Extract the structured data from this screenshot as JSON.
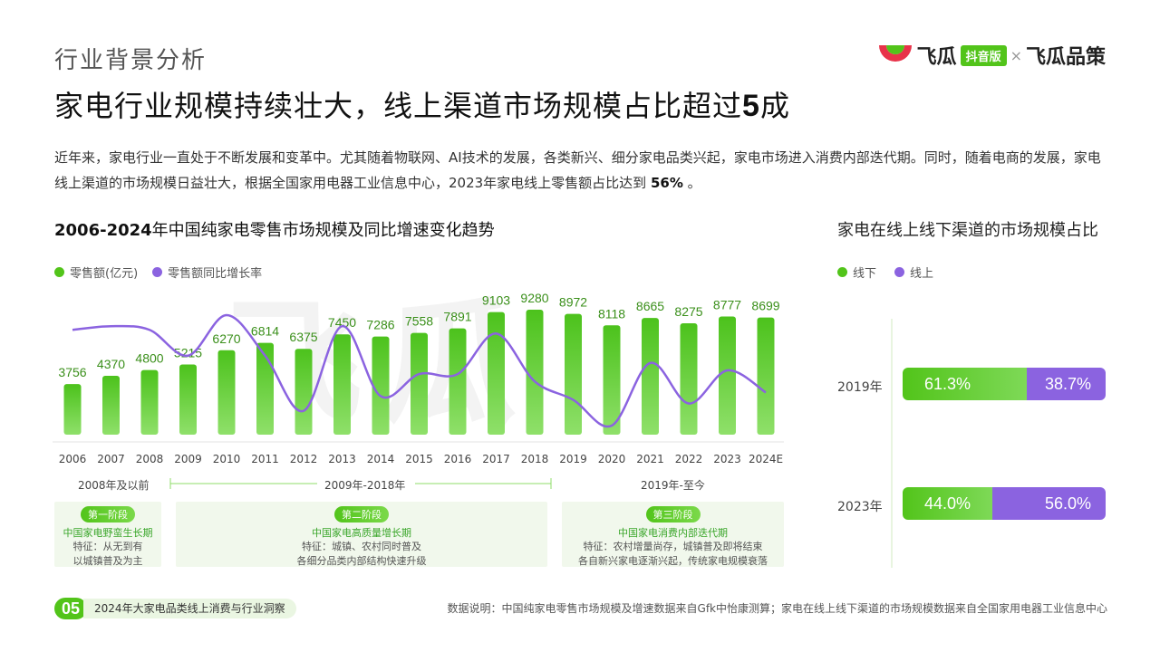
{
  "header": {
    "section": "行业背景分析",
    "headline_prefix": "家电行业规模持续壮大，线上渠道市场规模占比超过",
    "headline_num": "5",
    "headline_suffix": "成",
    "logo": {
      "brand": "飞瓜",
      "badge": "抖音版",
      "sep": "×",
      "brand2": "飞瓜品策"
    }
  },
  "intro": {
    "text": "近年来，家电行业一直处于不断发展和变革中。尤其随着物联网、AI技术的发展，各类新兴、细分家电品类兴起，家电市场进入消费内部迭代期。同时，随着电商的发展，家电线上渠道的市场规模日益壮大，根据全国家用电器工业信息中心，2023年家电线上零售额占比达到",
    "highlight": "56%",
    "tail": "。"
  },
  "left_title": {
    "bold": "2006-2024",
    "rest": "年中国纯家电零售市场规模及同比增速变化趋势"
  },
  "right_title": "家电在线上线下渠道的市场规模占比",
  "colors": {
    "green": "#52c41a",
    "purple": "#8b63e0",
    "light_green": "#f1f8ec"
  },
  "chart_data": [
    {
      "type": "bar",
      "title": "2006-2024年中国纯家电零售市场规模及同比增速变化趋势",
      "categories": [
        "2006",
        "2007",
        "2008",
        "2009",
        "2010",
        "2011",
        "2012",
        "2013",
        "2014",
        "2015",
        "2016",
        "2017",
        "2018",
        "2019",
        "2020",
        "2021",
        "2022",
        "2023",
        "2024E"
      ],
      "series": [
        {
          "name": "零售额(亿元)",
          "type": "bar",
          "values": [
            3756,
            4370,
            4800,
            5215,
            6270,
            6814,
            6375,
            7450,
            7286,
            7558,
            7891,
            9103,
            9280,
            8972,
            8118,
            8665,
            8275,
            8777,
            8699
          ]
        },
        {
          "name": "零售额同比增长率",
          "type": "line",
          "values": [
            16,
            17,
            16,
            9,
            20,
            9,
            -6,
            17,
            -2,
            4,
            4,
            15,
            2,
            -3,
            -10,
            7,
            -4,
            5,
            -1
          ]
        }
      ],
      "legend": [
        "零售额(亿元)",
        "零售额同比增长率"
      ],
      "legend_position": "top-left",
      "periods": [
        "2008年及以前",
        "2009年-2018年",
        "2019年-至今"
      ],
      "stages": [
        {
          "badge": "第一阶段",
          "name": "中国家电野蛮生长期",
          "feat1": "特征：从无到有",
          "feat2": "以城镇普及为主"
        },
        {
          "badge": "第二阶段",
          "name": "中国家电高质量增长期",
          "feat1": "特征：城镇、农村同时普及",
          "feat2": "各细分品类内部结构快速升级"
        },
        {
          "badge": "第三阶段",
          "name": "中国家电消费内部迭代期",
          "feat1": "特征：农村增量尚存，城镇普及即将结束",
          "feat2": "各自新兴家电逐渐兴起，传统家电规模衰落"
        }
      ]
    },
    {
      "type": "bar",
      "title": "家电在线上线下渠道的市场规模占比",
      "orientation": "horizontal-stacked",
      "categories": [
        "2019年",
        "2023年"
      ],
      "series": [
        {
          "name": "线下",
          "values": [
            61.3,
            44.0
          ],
          "labels": [
            "61.3%",
            "44.0%"
          ]
        },
        {
          "name": "线上",
          "values": [
            38.7,
            56.0
          ],
          "labels": [
            "38.7%",
            "56.0%"
          ]
        }
      ],
      "legend": [
        "线下",
        "线上"
      ]
    }
  ],
  "footer": {
    "page": "05",
    "tag": "2024年大家电品类线上消费与行业洞察",
    "source": "数据说明：中国纯家电零售市场规模及增速数据来自Gfk中怡康测算；家电在线上线下渠道的市场规模数据来自全国家用电器工业信息中心"
  }
}
